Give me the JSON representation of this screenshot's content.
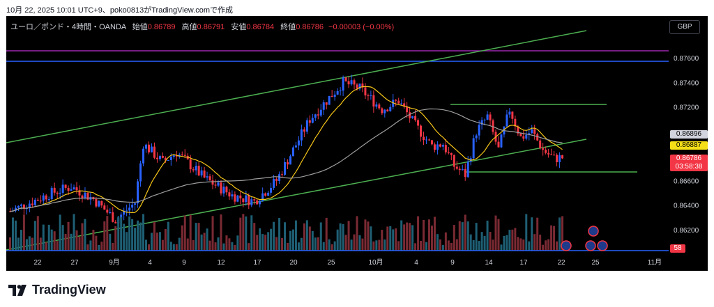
{
  "caption": "10月 22, 2025 10:01 UTC+9、poko0813がTradingView.comで作成",
  "legend": {
    "symbol": "ユーロ／ポンド・4時間・OANDA",
    "open_label": "始値",
    "open": "0.86789",
    "high_label": "高値",
    "high": "0.86791",
    "low_label": "安値",
    "low": "0.86784",
    "close_label": "終値",
    "close": "0.86786",
    "change": "−0.00003 (−0.00%)"
  },
  "currency": "GBP",
  "price_labels": [
    "0.87600",
    "0.87400",
    "0.87200",
    "0.86600",
    "0.86400",
    "0.86200"
  ],
  "tags": {
    "gray": "0.86896",
    "yellow": "0.86887",
    "current": "0.86786",
    "countdown": "03:58:38",
    "volume": "58"
  },
  "x_labels": [
    "22",
    "27",
    "9月",
    "4",
    "9",
    "12",
    "17",
    "20",
    "25",
    "10月",
    "4",
    "9",
    "14",
    "17",
    "22",
    "25",
    "11月"
  ],
  "brand": "TradingView",
  "colors": {
    "up": "#2962ff",
    "down": "#f23645",
    "channel": "#4caf50",
    "ma_fast": "#f5c518",
    "ma_slow": "#9e9e9e",
    "magenta": "#9c27b0",
    "blue": "#2962ff"
  }
}
